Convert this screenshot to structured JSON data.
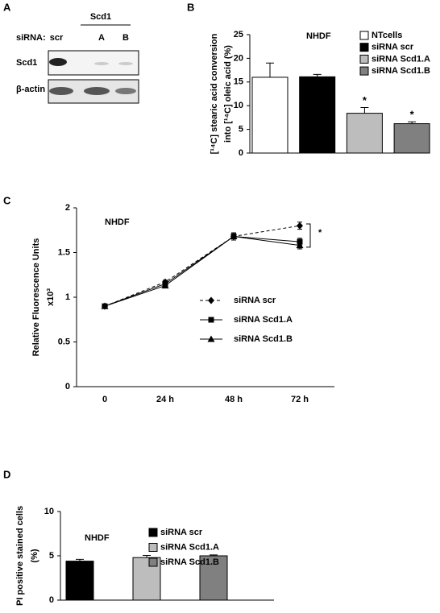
{
  "panel_labels": [
    "A",
    "B",
    "C",
    "D"
  ],
  "blot": {
    "group_label": "Scd1",
    "row_header": "siRNA:",
    "lanes": [
      "scr",
      "A",
      "B"
    ],
    "rows": [
      "Scd1",
      "β-actin"
    ]
  },
  "chart_data": [
    {
      "type": "bar",
      "title": "NHDF",
      "y_label": [
        "[¹⁴C]  stearic acid conversion",
        "into [¹⁴C] oleic acid (%)"
      ],
      "categories": [
        "NTcells",
        "siRNA scr",
        "siRNA Scd1.A",
        "siRNA Scd1.B"
      ],
      "values": [
        16,
        16.1,
        8.4,
        6.2
      ],
      "errors": [
        3,
        0.5,
        1.2,
        0.4
      ],
      "significance": [
        null,
        null,
        "*",
        "*"
      ],
      "colors": [
        "#ffffff",
        "#000000",
        "#bdbdbd",
        "#808080"
      ],
      "ylim": [
        0,
        25
      ],
      "yticks": [
        0,
        5,
        10,
        15,
        20,
        25
      ]
    },
    {
      "type": "line",
      "title": "NHDF",
      "y_label": [
        "Relative Fluorescence Units",
        "x10³"
      ],
      "categories": [
        "0",
        "24 h",
        "48 h",
        "72 h"
      ],
      "series": [
        {
          "name": "siRNA scr",
          "color": "#000000",
          "marker": "diamond",
          "dashed": true,
          "values": [
            0.9,
            1.17,
            1.68,
            1.8
          ],
          "errors": [
            0.01,
            0.02,
            0.04,
            0.04
          ]
        },
        {
          "name": "siRNA Scd1.A",
          "color": "#000000",
          "marker": "square",
          "dashed": false,
          "values": [
            0.9,
            1.15,
            1.68,
            1.62
          ],
          "errors": [
            0.01,
            0.02,
            0.04,
            0.04
          ]
        },
        {
          "name": "siRNA Scd1.B",
          "color": "#000000",
          "marker": "triangle",
          "dashed": false,
          "values": [
            0.9,
            1.13,
            1.68,
            1.58
          ],
          "errors": [
            0.01,
            0.02,
            0.04,
            0.04
          ]
        }
      ],
      "annotation": "*",
      "ylim": [
        0,
        2
      ],
      "yticks": [
        0,
        0.5,
        1,
        1.5,
        2
      ]
    },
    {
      "type": "bar",
      "title": "NHDF",
      "y_label": [
        "PI positive stained cells",
        "(%)"
      ],
      "categories": [
        "siRNA scr",
        "siRNA Scd1.A",
        "siRNA Scd1.B"
      ],
      "values": [
        4.4,
        4.8,
        5.0
      ],
      "errors": [
        0.2,
        0.25,
        0.1
      ],
      "colors": [
        "#000000",
        "#bdbdbd",
        "#808080"
      ],
      "ylim": [
        0,
        10
      ],
      "yticks": [
        0,
        5,
        10
      ]
    }
  ]
}
